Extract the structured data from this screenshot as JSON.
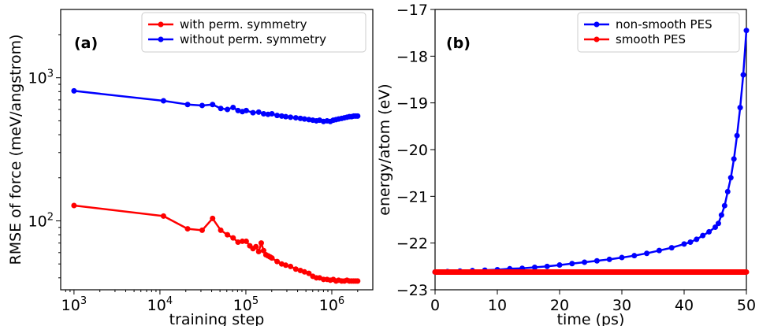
{
  "colors": {
    "red": "#ff0000",
    "blue": "#0000ff",
    "axis": "#000000"
  },
  "chart_data": [
    {
      "type": "line",
      "panel_label": "(a)",
      "xlabel": "training step",
      "ylabel": "RMSE of force (meV/angstrom)",
      "xscale": "log",
      "yscale": "log",
      "xlim": [
        700,
        3000000
      ],
      "ylim": [
        33,
        3000
      ],
      "x_ticks": [
        {
          "value": 1000,
          "mant": "10",
          "exp": "3"
        },
        {
          "value": 10000,
          "mant": "10",
          "exp": "4"
        },
        {
          "value": 100000,
          "mant": "10",
          "exp": "5"
        },
        {
          "value": 1000000,
          "mant": "10",
          "exp": "6"
        }
      ],
      "y_ticks": [
        {
          "value": 100,
          "mant": "10",
          "exp": "2"
        },
        {
          "value": 1000,
          "mant": "10",
          "exp": "3"
        }
      ],
      "legend_position": "top-right",
      "series": [
        {
          "name": "with perm. symmetry",
          "color": "#ff0000",
          "x": [
            1000,
            11000,
            21000,
            31000,
            41000,
            51000,
            61000,
            71000,
            81000,
            91000,
            101000,
            111000,
            121000,
            131000,
            141000,
            151000,
            161000,
            171000,
            181000,
            191000,
            201000,
            231000,
            261000,
            291000,
            331000,
            381000,
            431000,
            481000,
            541000,
            601000,
            661000,
            721000,
            801000,
            881000,
            961000,
            1041000,
            1121000,
            1201000,
            1301000,
            1401000,
            1501000,
            1601000,
            1701000,
            1801000,
            1901000,
            2001000
          ],
          "y": [
            128,
            108,
            88,
            86,
            104,
            86,
            80,
            76,
            71,
            72,
            72,
            67,
            64,
            66,
            61,
            70,
            62,
            58,
            57,
            56,
            55,
            52,
            50,
            49,
            48,
            46,
            45,
            44,
            43,
            41,
            40,
            40,
            39,
            39,
            38.5,
            39,
            38,
            38.5,
            38,
            38,
            38.5,
            38,
            38,
            38,
            38,
            38
          ]
        },
        {
          "name": "without perm. symmetry",
          "color": "#0000ff",
          "x": [
            1000,
            11000,
            21000,
            31000,
            41000,
            51000,
            61000,
            71000,
            81000,
            91000,
            101000,
            121000,
            141000,
            161000,
            181000,
            201000,
            231000,
            261000,
            291000,
            331000,
            381000,
            431000,
            481000,
            541000,
            601000,
            661000,
            721000,
            801000,
            881000,
            961000,
            1041000,
            1121000,
            1201000,
            1301000,
            1401000,
            1501000,
            1601000,
            1701000,
            1801000,
            1901000,
            2001000
          ],
          "y": [
            810,
            690,
            650,
            640,
            650,
            610,
            600,
            620,
            590,
            580,
            590,
            570,
            575,
            560,
            555,
            560,
            545,
            540,
            535,
            530,
            525,
            520,
            515,
            510,
            505,
            500,
            505,
            495,
            500,
            495,
            505,
            510,
            515,
            520,
            525,
            530,
            535,
            535,
            540,
            540,
            540
          ]
        }
      ]
    },
    {
      "type": "line",
      "panel_label": "(b)",
      "xlabel": "time (ps)",
      "ylabel": "energy/atom (eV)",
      "xlim": [
        0,
        50
      ],
      "ylim": [
        -23,
        -17
      ],
      "x_ticks": [
        0,
        10,
        20,
        30,
        40,
        50
      ],
      "y_ticks": [
        -23,
        -22,
        -21,
        -20,
        -19,
        -18,
        -17
      ],
      "legend_position": "top-right",
      "series": [
        {
          "name": "non-smooth PES",
          "color": "#0000ff",
          "x": [
            0,
            2,
            4,
            6,
            8,
            10,
            12,
            14,
            16,
            18,
            20,
            22,
            24,
            26,
            28,
            30,
            32,
            34,
            36,
            38,
            40,
            41,
            42,
            43,
            44,
            45,
            45.5,
            46,
            46.5,
            47,
            47.5,
            48,
            48.5,
            49,
            49.5,
            50
          ],
          "y": [
            -22.62,
            -22.61,
            -22.6,
            -22.59,
            -22.58,
            -22.57,
            -22.55,
            -22.54,
            -22.52,
            -22.5,
            -22.47,
            -22.44,
            -22.41,
            -22.38,
            -22.35,
            -22.31,
            -22.27,
            -22.22,
            -22.16,
            -22.1,
            -22.02,
            -21.98,
            -21.92,
            -21.84,
            -21.76,
            -21.66,
            -21.58,
            -21.4,
            -21.2,
            -20.9,
            -20.6,
            -20.2,
            -19.7,
            -19.1,
            -18.4,
            -17.45
          ]
        },
        {
          "name": "smooth PES",
          "color": "#ff0000",
          "x": [
            0,
            5,
            10,
            15,
            20,
            25,
            30,
            35,
            40,
            45,
            50
          ],
          "y": [
            -22.62,
            -22.62,
            -22.62,
            -22.62,
            -22.62,
            -22.62,
            -22.62,
            -22.62,
            -22.62,
            -22.62,
            -22.62
          ]
        }
      ]
    }
  ]
}
